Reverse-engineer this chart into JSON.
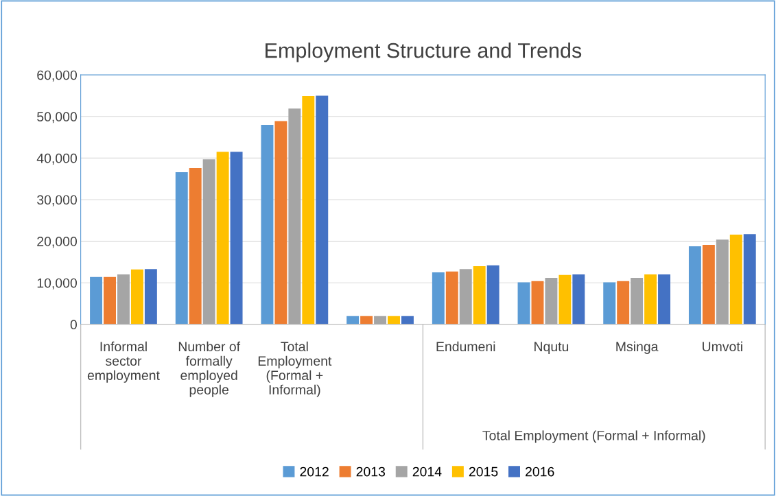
{
  "chart_data": {
    "type": "bar",
    "title": "Employment Structure and Trends",
    "categories": [
      "Informal\nsector\nemployment",
      "Number of\nformally\nemployed\npeople",
      "Total\nEmployment\n(Formal +\nInformal)",
      null,
      "Endumeni",
      "Nqutu",
      "Msinga",
      "Umvoti"
    ],
    "series": [
      {
        "name": "2012",
        "color": "#5b9bd5",
        "values": [
          11400,
          36600,
          48000,
          2000,
          12500,
          10100,
          10100,
          18800
        ]
      },
      {
        "name": "2013",
        "color": "#ed7d31",
        "values": [
          11400,
          37600,
          48900,
          2000,
          12700,
          10400,
          10400,
          19100
        ]
      },
      {
        "name": "2014",
        "color": "#a5a5a5",
        "values": [
          12000,
          39700,
          51900,
          2000,
          13300,
          11200,
          11200,
          20400
        ]
      },
      {
        "name": "2015",
        "color": "#ffc000",
        "values": [
          13200,
          41500,
          54900,
          2000,
          14000,
          11900,
          12000,
          21600
        ]
      },
      {
        "name": "2016",
        "color": "#4472c4",
        "values": [
          13300,
          41500,
          55000,
          2000,
          14200,
          12000,
          12000,
          21700
        ]
      }
    ],
    "annotations": [
      "Total Employment (Formal + Informal)"
    ],
    "ylim": [
      0,
      60000
    ],
    "yticks": [
      {
        "value": 0,
        "label": "0"
      },
      {
        "value": 10000,
        "label": "10,000"
      },
      {
        "value": 20000,
        "label": "20,000"
      },
      {
        "value": 30000,
        "label": "30,000"
      },
      {
        "value": 40000,
        "label": "40,000"
      },
      {
        "value": 50000,
        "label": "50,000"
      },
      {
        "value": 60000,
        "label": "60,000"
      }
    ],
    "grid": "y",
    "legend": "bottom"
  }
}
